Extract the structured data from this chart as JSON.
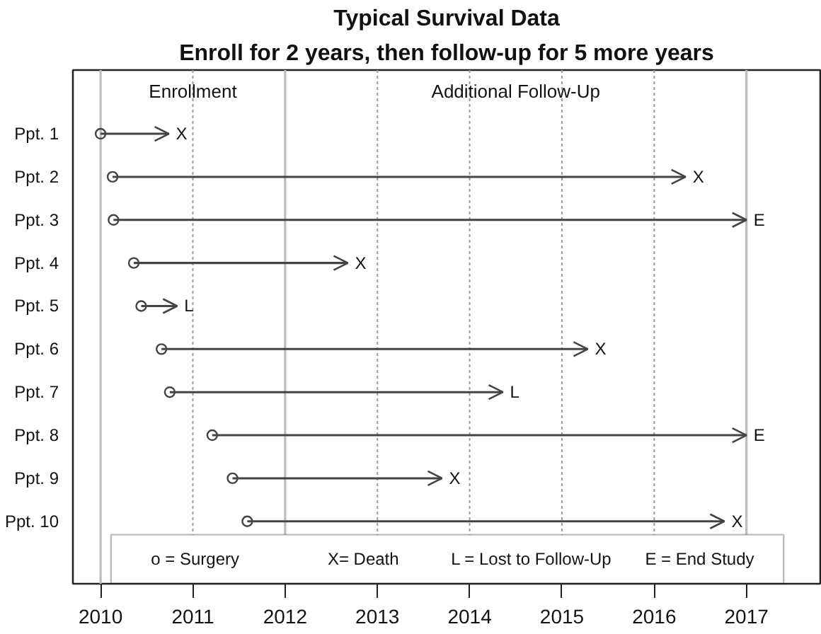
{
  "chart_data": {
    "type": "bar",
    "orientation": "horizontal",
    "title": "Typical Survival Data",
    "subtitle": "Enroll for 2 years, then follow-up for 5 more years",
    "categories": [
      "Ppt. 1",
      "Ppt. 2",
      "Ppt. 3",
      "Ppt. 4",
      "Ppt. 5",
      "Ppt. 6",
      "Ppt. 7",
      "Ppt. 8",
      "Ppt. 9",
      "Ppt. 10"
    ],
    "series": [
      {
        "color": "#444444",
        "base": [
          2010.0,
          2010.13,
          2010.14,
          2010.36,
          2010.44,
          2010.66,
          2010.75,
          2011.21,
          2011.43,
          2011.59
        ],
        "values": [
          0.74,
          6.21,
          6.86,
          2.32,
          0.39,
          4.62,
          3.61,
          5.79,
          2.27,
          5.17
        ],
        "value_labels": [
          "X",
          "X",
          "E",
          "X",
          "L",
          "X",
          "L",
          "E",
          "X",
          "X"
        ]
      },
      {
        "type": "scatter",
        "color": "#444444",
        "marker": "circle",
        "x": [
          "Ppt. 1",
          "Ppt. 2",
          "Ppt. 3",
          "Ppt. 4",
          "Ppt. 5",
          "Ppt. 6",
          "Ppt. 7",
          "Ppt. 8",
          "Ppt. 9",
          "Ppt. 10"
        ],
        "values": [
          2010.0,
          2010.13,
          2010.14,
          2010.36,
          2010.44,
          2010.66,
          2010.75,
          2011.21,
          2011.43,
          2011.59
        ]
      }
    ],
    "xlim": [
      2009.7,
      2017.8
    ],
    "xticks": [
      2010,
      2011,
      2012,
      2013,
      2014,
      2015,
      2016,
      2017
    ],
    "ref_lines": [
      {
        "axis": "x",
        "value": 2010,
        "color": "#bdbdbd"
      },
      {
        "axis": "x",
        "value": 2011,
        "color": "#9a9a9a",
        "line_style": "dotted"
      },
      {
        "axis": "x",
        "value": 2012,
        "color": "#bdbdbd"
      },
      {
        "axis": "x",
        "value": 2013,
        "color": "#9a9a9a",
        "line_style": "dotted"
      },
      {
        "axis": "x",
        "value": 2014,
        "color": "#9a9a9a",
        "line_style": "dotted"
      },
      {
        "axis": "x",
        "value": 2015,
        "color": "#9a9a9a",
        "line_style": "dotted"
      },
      {
        "axis": "x",
        "value": 2016,
        "color": "#9a9a9a",
        "line_style": "dotted"
      },
      {
        "axis": "x",
        "value": 2017,
        "color": "#bdbdbd"
      }
    ],
    "annotations": [
      "Enrollment",
      "Additional Follow-Up",
      "o = Surgery",
      "X= Death",
      "L = Lost to Follow-Up",
      "E = End Study"
    ]
  }
}
